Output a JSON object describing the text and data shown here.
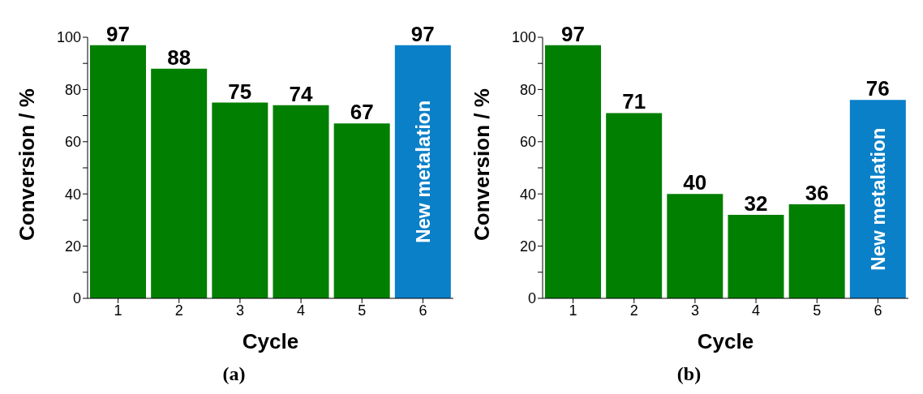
{
  "chart_data": [
    {
      "type": "bar",
      "categories": [
        "1",
        "2",
        "3",
        "4",
        "5",
        "6"
      ],
      "values": [
        97,
        88,
        75,
        74,
        67,
        97
      ],
      "colors": [
        "#007f00",
        "#007f00",
        "#007f00",
        "#007f00",
        "#007f00",
        "#0a80c8"
      ],
      "ylim": [
        0,
        100
      ],
      "yticks": [
        0,
        {
          "value": 10,
          "label": null
        },
        20,
        {
          "value": 30,
          "label": null
        },
        40,
        {
          "value": 50,
          "label": null
        },
        60,
        {
          "value": 70,
          "label": null
        },
        80,
        {
          "value": 90,
          "label": null
        },
        100
      ],
      "xlabel": "Cycle",
      "ylabel": "Conversion / %",
      "data_labels": true,
      "grid": false,
      "annotations": [
        "New metalation",
        "(a)"
      ]
    },
    {
      "type": "bar",
      "categories": [
        "1",
        "2",
        "3",
        "4",
        "5",
        "6"
      ],
      "values": [
        97,
        71,
        40,
        32,
        36,
        76
      ],
      "colors": [
        "#007f00",
        "#007f00",
        "#007f00",
        "#007f00",
        "#007f00",
        "#0a80c8"
      ],
      "ylim": [
        0,
        100
      ],
      "yticks": [
        0,
        {
          "value": 10,
          "label": null
        },
        20,
        {
          "value": 30,
          "label": null
        },
        40,
        {
          "value": 50,
          "label": null
        },
        60,
        {
          "value": 70,
          "label": null
        },
        80,
        {
          "value": 90,
          "label": null
        },
        100
      ],
      "xlabel": "Cycle",
      "ylabel": "Conversion / %",
      "data_labels": true,
      "grid": false,
      "annotations": [
        "New metalation",
        "(b)"
      ]
    }
  ]
}
